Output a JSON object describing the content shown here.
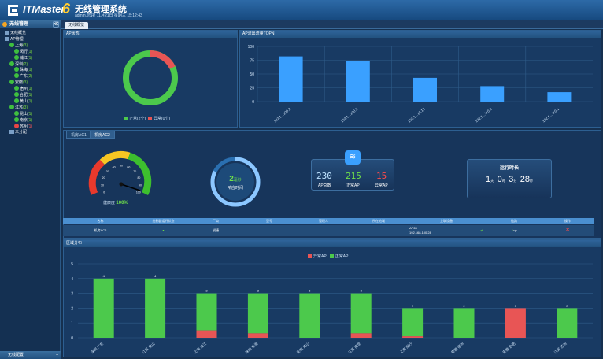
{
  "header": {
    "logo_text": "ITMaster",
    "logo_version": "6",
    "system_title": "无线管理系统",
    "system_info": "admin,您好! 11月21日 星期三 15:12:43"
  },
  "sidebar": {
    "section_title": "无线管理",
    "section_btn": "≪",
    "items": [
      {
        "label": "无线概览",
        "count": ""
      },
      {
        "label": "AP管理",
        "count": ""
      },
      {
        "label": "上海",
        "count": "(3)"
      },
      {
        "label": "闵行",
        "count": "(1)"
      },
      {
        "label": "浦江",
        "count": "(1)"
      },
      {
        "label": "深圳",
        "count": "(2)"
      },
      {
        "label": "珠海",
        "count": "(1)"
      },
      {
        "label": "广东",
        "count": "(2)"
      },
      {
        "label": "安徽",
        "count": "(3)"
      },
      {
        "label": "宿州",
        "count": "(1)"
      },
      {
        "label": "合肥",
        "count": "(1)"
      },
      {
        "label": "黄山",
        "count": "(1)"
      },
      {
        "label": "江苏",
        "count": "(3)"
      },
      {
        "label": "昆山",
        "count": "(1)"
      },
      {
        "label": "南京",
        "count": "(1)"
      },
      {
        "label": "苏州",
        "count": "(1)"
      },
      {
        "label": "未分配",
        "count": ""
      }
    ],
    "bottom_title": "无线配置",
    "bottom_btn": "+"
  },
  "tabs": {
    "main": "无线概览"
  },
  "ap_status": {
    "title": "AP状态",
    "normal_label": "正常(2个)",
    "abnormal_label": "异常(0个)",
    "normal_color": "#4cc94c",
    "abnormal_color": "#e85555",
    "normal_fraction": 0.82
  },
  "topn": {
    "title": "AP流出流量TOPN",
    "chart_data": {
      "type": "bar",
      "categories": [
        "192.1...100.2",
        "192.1...100.5",
        "192.1...10.12",
        "192.1...110.8",
        "192.1...110.1"
      ],
      "values": [
        82,
        74,
        43,
        28,
        17
      ],
      "ylim": [
        0,
        100
      ],
      "yticks": [
        "100",
        "75",
        "50",
        "25",
        "0"
      ],
      "color": "#3aa0ff"
    }
  },
  "controllers": {
    "tab1": "机房AC1",
    "tab2": "机房AC2",
    "health_label": "健康度",
    "health_value": "100%",
    "gauge_ticks": [
      "0",
      "10",
      "20",
      "30",
      "40",
      "50",
      "60",
      "70",
      "80",
      "90",
      "100"
    ],
    "response_value": "2",
    "response_unit": "毫秒",
    "response_label": "响应时间",
    "ap_total": "230",
    "ap_total_label": "AP总数",
    "ap_normal": "215",
    "ap_normal_label": "正常AP",
    "ap_abnormal": "15",
    "ap_abnormal_label": "异常AP",
    "uptime_label": "运行时长",
    "uptime": {
      "d": "1",
      "d_unit": "天",
      "h": "0",
      "h_unit": "时",
      "m": "3",
      "m_unit": "分",
      "s": "28",
      "s_unit": "秒"
    }
  },
  "ac_table": {
    "headers": [
      "名称",
      "控制器运行状态",
      "厂商",
      "型号",
      "管理人",
      "所在地域",
      "上联设备",
      "链路",
      "操作"
    ],
    "row": {
      "name": "机房AC2",
      "vendor": "锐捷",
      "uplink1": "AP28",
      "uplink2": "192.168.100.28",
      "link": "up"
    }
  },
  "region": {
    "title": "区域分布",
    "legend_abnormal": "异常AP",
    "legend_normal": "正常AP",
    "chart_data": {
      "type": "bar",
      "categories": [
        "深圳 广东",
        "江苏 昆山",
        "上海 浦江",
        "深圳 珠海",
        "安徽 黄山",
        "江苏 南京",
        "上海 闵行",
        "安徽 宿州",
        "安徽 合肥",
        "江苏 苏州"
      ],
      "series": [
        {
          "name": "异常AP",
          "values": [
            0,
            0,
            0.5,
            0.3,
            0,
            0.3,
            0.1,
            0,
            2,
            0
          ]
        },
        {
          "name": "正常AP",
          "values": [
            4,
            4,
            2.5,
            2.7,
            3,
            2.7,
            1.9,
            2,
            0,
            2
          ]
        }
      ],
      "totals": [
        "4",
        "4",
        "3",
        "3",
        "3",
        "3",
        "2",
        "2",
        "2",
        "2"
      ],
      "ylim": [
        0,
        5
      ],
      "yticks": [
        "5",
        "4",
        "3",
        "2",
        "1",
        "0"
      ],
      "colors": {
        "abnormal": "#e85555",
        "normal": "#4cc94c"
      }
    }
  }
}
